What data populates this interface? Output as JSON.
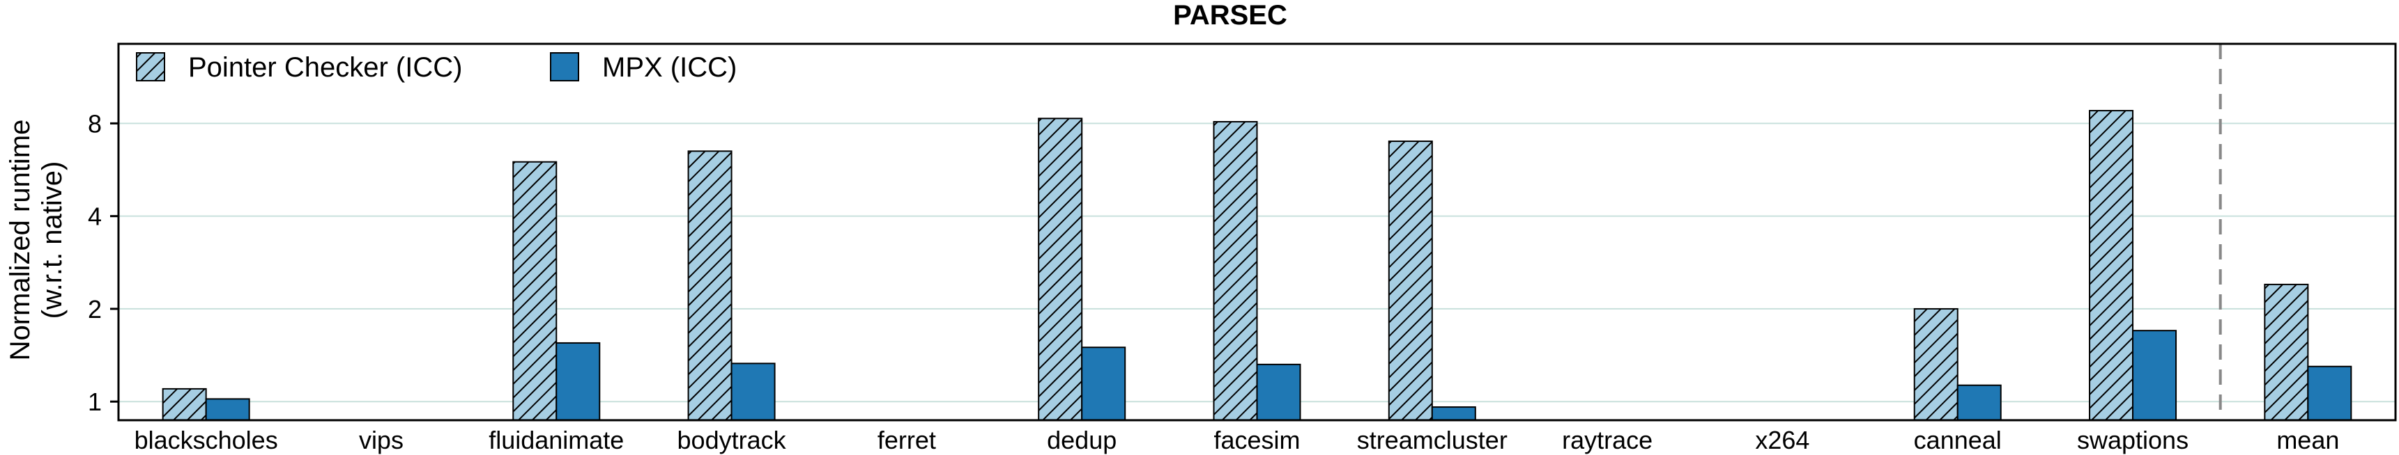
{
  "chart_data": {
    "type": "bar",
    "title": "PARSEC",
    "ylabel_lines": [
      "Normalized runtime",
      "(w.r.t. native)"
    ],
    "yscale": "log2",
    "ylim": [
      0.87,
      14.5
    ],
    "yticks": [
      1,
      2,
      4,
      8
    ],
    "ytick_labels": [
      "1",
      "2",
      "4",
      "8"
    ],
    "grid": "horizontal",
    "legend_position": "top-left",
    "categories": [
      "blackscholes",
      "vips",
      "fluidanimate",
      "bodytrack",
      "ferret",
      "dedup",
      "facesim",
      "streamcluster",
      "raytrace",
      "x264",
      "canneal",
      "swaptions",
      "mean"
    ],
    "separator_before": "mean",
    "series": [
      {
        "name": "Pointer Checker (ICC)",
        "color": "#a6cee3",
        "pattern": "hatched",
        "values": [
          1.1,
          null,
          6.0,
          6.5,
          null,
          8.3,
          8.1,
          7.0,
          null,
          null,
          2.0,
          8.8,
          2.4
        ]
      },
      {
        "name": "MPX (ICC)",
        "color": "#1f78b4",
        "pattern": "solid",
        "values": [
          1.02,
          null,
          1.55,
          1.33,
          null,
          1.5,
          1.32,
          0.96,
          null,
          null,
          1.13,
          1.7,
          1.3
        ]
      }
    ]
  }
}
